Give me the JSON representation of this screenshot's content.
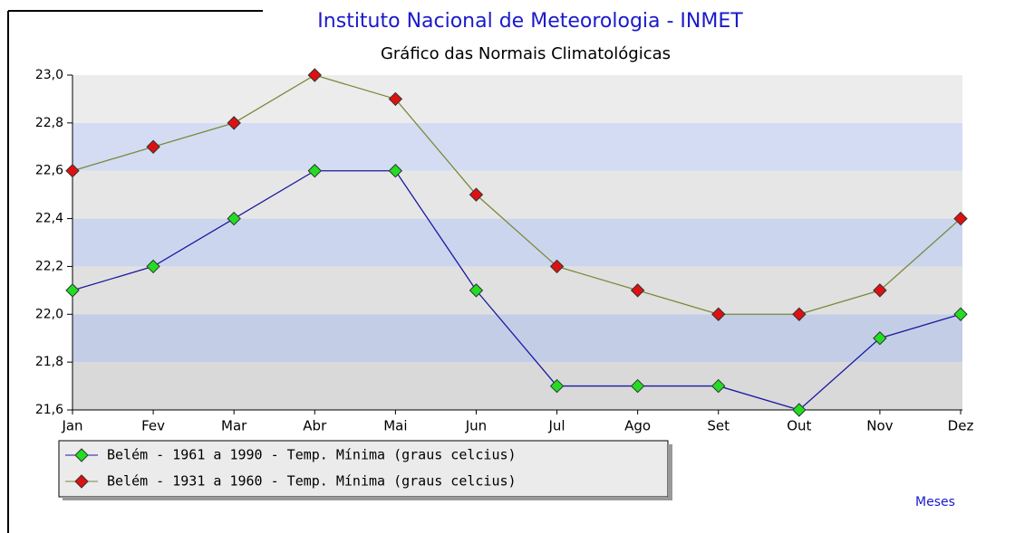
{
  "chart_data": {
    "type": "line",
    "title": "Instituto Nacional de Meteorologia - INMET",
    "subtitle": "Gráfico das Normais Climatológicas",
    "x_label": "Meses",
    "categories": [
      "Jan",
      "Fev",
      "Mar",
      "Abr",
      "Mai",
      "Jun",
      "Jul",
      "Ago",
      "Set",
      "Out",
      "Nov",
      "Dez"
    ],
    "series": [
      {
        "name": "Belém - 1961 a 1990 - Temp. Mínima (graus celcius)",
        "color": "#22dd22",
        "line_color": "#1a1aa0",
        "values": [
          22.1,
          22.2,
          22.4,
          22.6,
          22.6,
          22.1,
          21.7,
          21.7,
          21.7,
          21.6,
          21.9,
          22.0
        ]
      },
      {
        "name": "Belém - 1931 a 1960 - Temp. Mínima (graus celcius)",
        "color": "#dd1111",
        "line_color": "#7a8a3a",
        "values": [
          22.6,
          22.7,
          22.8,
          23.0,
          22.9,
          22.5,
          22.2,
          22.1,
          22.0,
          22.0,
          22.1,
          22.4
        ]
      }
    ],
    "ylim": [
      21.6,
      23.0
    ],
    "yticks": [
      {
        "value": 21.6,
        "label": "21,6"
      },
      {
        "value": 21.8,
        "label": "21,8"
      },
      {
        "value": 22.0,
        "label": "22,0"
      },
      {
        "value": 22.2,
        "label": "22,2"
      },
      {
        "value": 22.4,
        "label": "22,4"
      },
      {
        "value": 22.6,
        "label": "22,6"
      },
      {
        "value": 22.8,
        "label": "22,8"
      },
      {
        "value": 23.0,
        "label": "23,0"
      }
    ],
    "legend": "bottom-left"
  }
}
